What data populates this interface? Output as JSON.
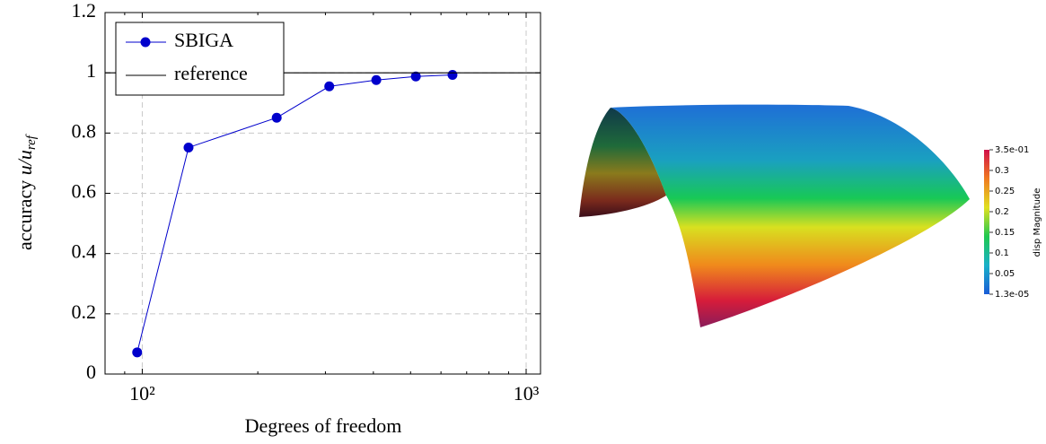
{
  "chart_data": {
    "type": "line",
    "xlabel": "Degrees of freedom",
    "ylabel_parts": [
      "accuracy",
      "u/u",
      "ref"
    ],
    "x": [
      97,
      132,
      224,
      307,
      407,
      516,
      643
    ],
    "series": [
      {
        "name": "SBIGA",
        "color": "#0000cc",
        "values": [
          0.072,
          0.752,
          0.851,
          0.955,
          0.976,
          0.988,
          0.993
        ]
      },
      {
        "name": "reference",
        "color": "#000000",
        "y": 1
      }
    ],
    "xlim": [
      80,
      1090
    ],
    "xlog": true,
    "xticks": [
      {
        "value": 100,
        "label": "10²"
      },
      {
        "value": 1000,
        "label": "10³"
      }
    ],
    "xminorticks": [
      90,
      200,
      300,
      400,
      500,
      600,
      700,
      800,
      900
    ],
    "ylim": [
      0,
      1.2
    ],
    "yticks": [
      0,
      0.2,
      0.4,
      0.6,
      0.8,
      1,
      1.2
    ],
    "grid": true,
    "legend": "upper left"
  },
  "render": {
    "colorbar_title": "disp Magnitude",
    "colorbar_lim": [
      1.3e-05,
      0.35
    ],
    "colorbar_ticks": [
      {
        "value": 0.35,
        "label": "3.5e-01"
      },
      0.3,
      0.25,
      0.2,
      0.15,
      0.1,
      0.05,
      {
        "value": 1.3e-05,
        "label": "1.3e-05"
      }
    ]
  }
}
